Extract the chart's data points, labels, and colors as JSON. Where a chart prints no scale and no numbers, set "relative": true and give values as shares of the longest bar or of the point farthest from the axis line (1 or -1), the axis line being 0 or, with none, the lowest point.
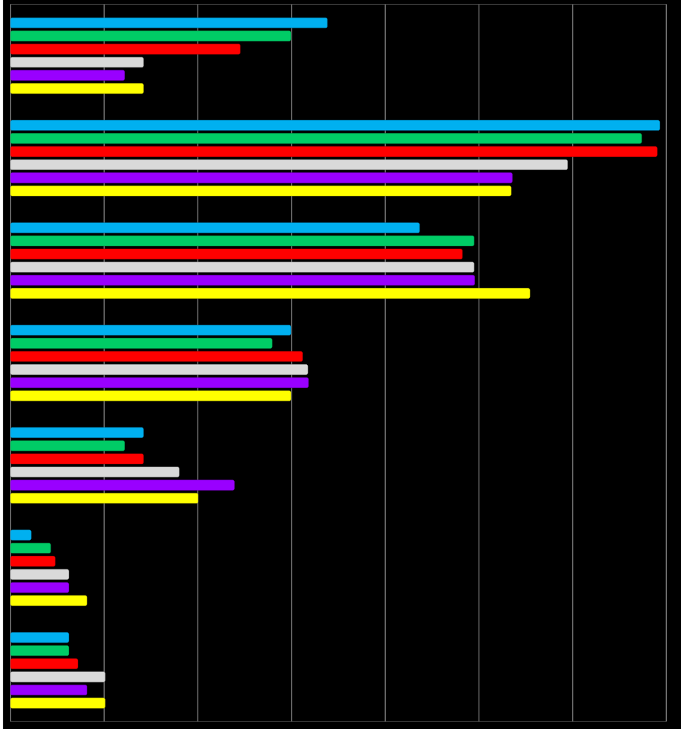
{
  "chart_data": {
    "type": "bar",
    "orientation": "horizontal",
    "relative": true,
    "grid": "x",
    "categories": [
      null,
      null,
      null,
      null,
      null,
      null,
      null
    ],
    "series": [
      {
        "color": "#00b0f0",
        "values": [
          0.488,
          1.0,
          0.63,
          0.432,
          0.205,
          0.032,
          0.09
        ]
      },
      {
        "color": "#00cc66",
        "values": [
          0.432,
          0.972,
          0.714,
          0.403,
          0.176,
          0.062,
          0.09
        ]
      },
      {
        "color": "#ff0000",
        "values": [
          0.354,
          0.996,
          0.696,
          0.45,
          0.205,
          0.069,
          0.104
        ]
      },
      {
        "color": "#d9d9d9",
        "values": [
          0.205,
          0.858,
          0.714,
          0.458,
          0.26,
          0.09,
          0.146
        ]
      },
      {
        "color": "#9900ff",
        "values": [
          0.176,
          0.773,
          0.715,
          0.459,
          0.345,
          0.09,
          0.118
        ]
      },
      {
        "color": "#ffff00",
        "values": [
          0.205,
          0.771,
          0.8,
          0.432,
          0.289,
          0.118,
          0.146
        ]
      }
    ]
  }
}
